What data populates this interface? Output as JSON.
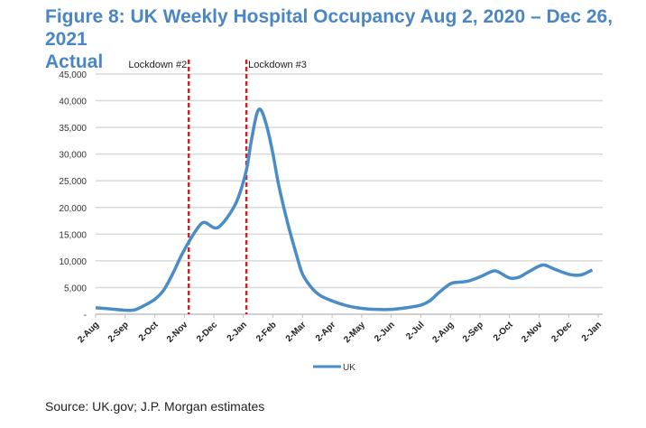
{
  "title": "Figure 8: UK Weekly Hospital Occupancy Aug 2, 2020 – Dec 26, 2021",
  "subtitle": "Actual",
  "source": "Source: UK.gov; J.P. Morgan estimates",
  "chart_data": {
    "type": "line",
    "title": "Figure 8: UK Weekly Hospital Occupancy Aug 2, 2020 – Dec 26, 2021",
    "xlabel": "",
    "ylabel": "",
    "ylim": [
      0,
      45000
    ],
    "yticks": [
      0,
      5000,
      10000,
      15000,
      20000,
      25000,
      30000,
      35000,
      40000,
      45000
    ],
    "ytick_labels": [
      "-",
      "5,000",
      "10,000",
      "15,000",
      "20,000",
      "25,000",
      "30,000",
      "35,000",
      "40,000",
      "45,000"
    ],
    "xtick_labels": [
      "2-Aug",
      "2-Sep",
      "2-Oct",
      "2-Nov",
      "2-Dec",
      "2-Jan",
      "2-Feb",
      "2-Mar",
      "2-Apr",
      "2-May",
      "2-Jun",
      "2-Jul",
      "2-Aug",
      "2-Sep",
      "2-Oct",
      "2-Nov",
      "2-Dec",
      "2-Jan"
    ],
    "x_unit": "months since 2-Aug-2020",
    "grid": true,
    "legend": "bottom-left",
    "series": [
      {
        "name": "UK",
        "color": "#4a8cc8",
        "x": [
          0,
          0.5,
          1,
          1.3,
          1.6,
          2,
          2.3,
          2.6,
          2.9,
          3.2,
          3.5,
          3.7,
          4.0,
          4.2,
          4.5,
          4.8,
          5.1,
          5.25,
          5.45,
          5.6,
          5.8,
          6.0,
          6.2,
          6.5,
          6.8,
          7.0,
          7.3,
          7.6,
          8.0,
          8.5,
          9.0,
          9.5,
          10,
          10.5,
          11,
          11.3,
          11.6,
          12,
          12.3,
          12.6,
          13,
          13.4,
          13.6,
          14,
          14.3,
          14.6,
          15,
          15.2,
          15.5,
          16,
          16.3,
          16.5,
          16.8
        ],
        "values": [
          1200,
          1000,
          750,
          800,
          1500,
          2800,
          4500,
          7500,
          11000,
          14000,
          16500,
          17200,
          16200,
          16500,
          18500,
          21500,
          27000,
          32000,
          37500,
          38200,
          35000,
          30000,
          24000,
          17000,
          11000,
          7500,
          5000,
          3500,
          2500,
          1600,
          1100,
          900,
          900,
          1200,
          1700,
          2500,
          4000,
          5700,
          6000,
          6200,
          7000,
          8000,
          8000,
          6800,
          6900,
          7800,
          9000,
          9200,
          8500,
          7500,
          7300,
          7500,
          8300
        ]
      }
    ],
    "annotations": [
      {
        "label": "Lockdown #2",
        "x": 3.15,
        "color": "#c0272d"
      },
      {
        "label": "Lockdown #3",
        "x": 5.1,
        "color": "#c0272d"
      }
    ]
  }
}
